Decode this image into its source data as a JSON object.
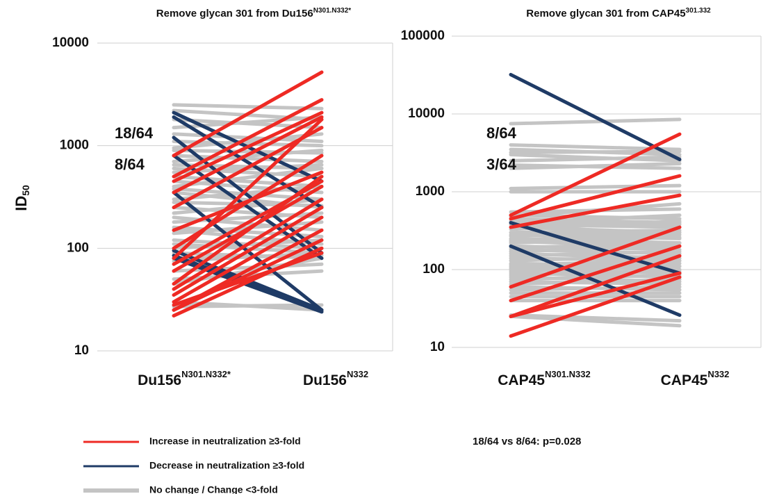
{
  "chart_data": [
    {
      "type": "slope",
      "title": "Remove glycan 301 from Du156",
      "title_sup": "N301.N332*",
      "categories": [
        "Du156",
        "Du156"
      ],
      "category_sups": [
        "N301.N332*",
        "N332"
      ],
      "ylabel": "ID",
      "ylabel_sub": "50",
      "log": true,
      "grid": true,
      "ylim": [
        10,
        10000
      ],
      "yticks": [
        10,
        100,
        1000,
        10000
      ],
      "annotations": [
        {
          "text": "18/64",
          "color": "#ee2a24"
        },
        {
          "text": "8/64",
          "color": "#1f3b66"
        }
      ],
      "series": [
        {
          "name": "Increase in neutralization ≥3-fold",
          "color": "#ee2a24",
          "values": [
            [
              800,
              5200
            ],
            [
              500,
              2800
            ],
            [
              450,
              2100
            ],
            [
              350,
              1900
            ],
            [
              250,
              1500
            ],
            [
              100,
              800
            ],
            [
              150,
              550
            ],
            [
              70,
              450
            ],
            [
              60,
              400
            ],
            [
              40,
              300
            ],
            [
              30,
              200
            ],
            [
              25,
              150
            ],
            [
              25,
              120
            ],
            [
              22,
              100
            ],
            [
              28,
              90
            ],
            [
              35,
              250
            ],
            [
              45,
              500
            ],
            [
              80,
              1800
            ]
          ]
        },
        {
          "name": "Decrease in neutralization ≥3-fold",
          "color": "#1f3b66",
          "values": [
            [
              2100,
              450
            ],
            [
              1900,
              250
            ],
            [
              1200,
              90
            ],
            [
              800,
              80
            ],
            [
              350,
              25
            ],
            [
              95,
              25
            ],
            [
              85,
              25
            ],
            [
              80,
              24
            ]
          ]
        },
        {
          "name": "No change / Change <3-fold",
          "color": "#c4c4c4",
          "values": [
            [
              2500,
              2300
            ],
            [
              2200,
              1800
            ],
            [
              1800,
              1500
            ],
            [
              1500,
              1900
            ],
            [
              1300,
              1100
            ],
            [
              1100,
              1000
            ],
            [
              950,
              1300
            ],
            [
              900,
              850
            ],
            [
              800,
              700
            ],
            [
              700,
              900
            ],
            [
              650,
              600
            ],
            [
              600,
              500
            ],
            [
              550,
              650
            ],
            [
              500,
              400
            ],
            [
              450,
              350
            ],
            [
              400,
              600
            ],
            [
              380,
              300
            ],
            [
              350,
              250
            ],
            [
              300,
              400
            ],
            [
              280,
              260
            ],
            [
              250,
              200
            ],
            [
              220,
              300
            ],
            [
              200,
              150
            ],
            [
              180,
              220
            ],
            [
              160,
              130
            ],
            [
              150,
              110
            ],
            [
              140,
              180
            ],
            [
              120,
              100
            ],
            [
              110,
              90
            ],
            [
              100,
              120
            ],
            [
              90,
              80
            ],
            [
              80,
              85
            ],
            [
              75,
              90
            ],
            [
              60,
              70
            ],
            [
              50,
              60
            ],
            [
              45,
              80
            ],
            [
              30,
              25
            ],
            [
              27,
              28
            ]
          ]
        }
      ]
    },
    {
      "type": "slope",
      "title": "Remove glycan 301 from CAP45",
      "title_sup": "301.332",
      "categories": [
        "CAP45",
        "CAP45"
      ],
      "category_sups": [
        "N301.N332",
        "N332"
      ],
      "log": true,
      "grid": true,
      "ylim": [
        10,
        100000
      ],
      "yticks": [
        10,
        100,
        1000,
        10000,
        100000
      ],
      "annotations": [
        {
          "text": "8/64",
          "color": "#ee2a24"
        },
        {
          "text": "3/64",
          "color": "#1f3b66"
        }
      ],
      "footnote": "18/64 vs 8/64: p=0.028",
      "series": [
        {
          "color": "#ee2a24",
          "values": [
            [
              500,
              5500
            ],
            [
              450,
              1600
            ],
            [
              350,
              900
            ],
            [
              60,
              350
            ],
            [
              40,
              200
            ],
            [
              25,
              90
            ],
            [
              14,
              80
            ],
            [
              25,
              150
            ]
          ]
        },
        {
          "color": "#1f3b66",
          "values": [
            [
              32000,
              2600
            ],
            [
              400,
              90
            ],
            [
              200,
              26
            ]
          ]
        },
        {
          "color": "#c4c4c4",
          "values": [
            [
              7500,
              8500
            ],
            [
              4000,
              3500
            ],
            [
              3500,
              3000
            ],
            [
              3200,
              3300
            ],
            [
              3000,
              2500
            ],
            [
              2500,
              2800
            ],
            [
              2200,
              2000
            ],
            [
              2000,
              2300
            ],
            [
              1100,
              1200
            ],
            [
              1000,
              1000
            ],
            [
              550,
              600
            ],
            [
              500,
              450
            ],
            [
              480,
              700
            ],
            [
              450,
              400
            ],
            [
              420,
              380
            ],
            [
              400,
              500
            ],
            [
              380,
              350
            ],
            [
              350,
              300
            ],
            [
              330,
              420
            ],
            [
              300,
              320
            ],
            [
              280,
              250
            ],
            [
              270,
              300
            ],
            [
              250,
              220
            ],
            [
              240,
              280
            ],
            [
              230,
              200
            ],
            [
              220,
              260
            ],
            [
              200,
              180
            ],
            [
              190,
              220
            ],
            [
              180,
              160
            ],
            [
              170,
              200
            ],
            [
              160,
              140
            ],
            [
              150,
              170
            ],
            [
              140,
              130
            ],
            [
              130,
              150
            ],
            [
              120,
              110
            ],
            [
              115,
              130
            ],
            [
              110,
              100
            ],
            [
              105,
              120
            ],
            [
              100,
              90
            ],
            [
              95,
              110
            ],
            [
              90,
              80
            ],
            [
              85,
              95
            ],
            [
              80,
              70
            ],
            [
              75,
              85
            ],
            [
              70,
              65
            ],
            [
              65,
              75
            ],
            [
              60,
              55
            ],
            [
              55,
              60
            ],
            [
              50,
              50
            ],
            [
              45,
              45
            ],
            [
              40,
              40
            ],
            [
              26,
              22
            ],
            [
              25,
              19
            ]
          ]
        }
      ]
    }
  ]
}
